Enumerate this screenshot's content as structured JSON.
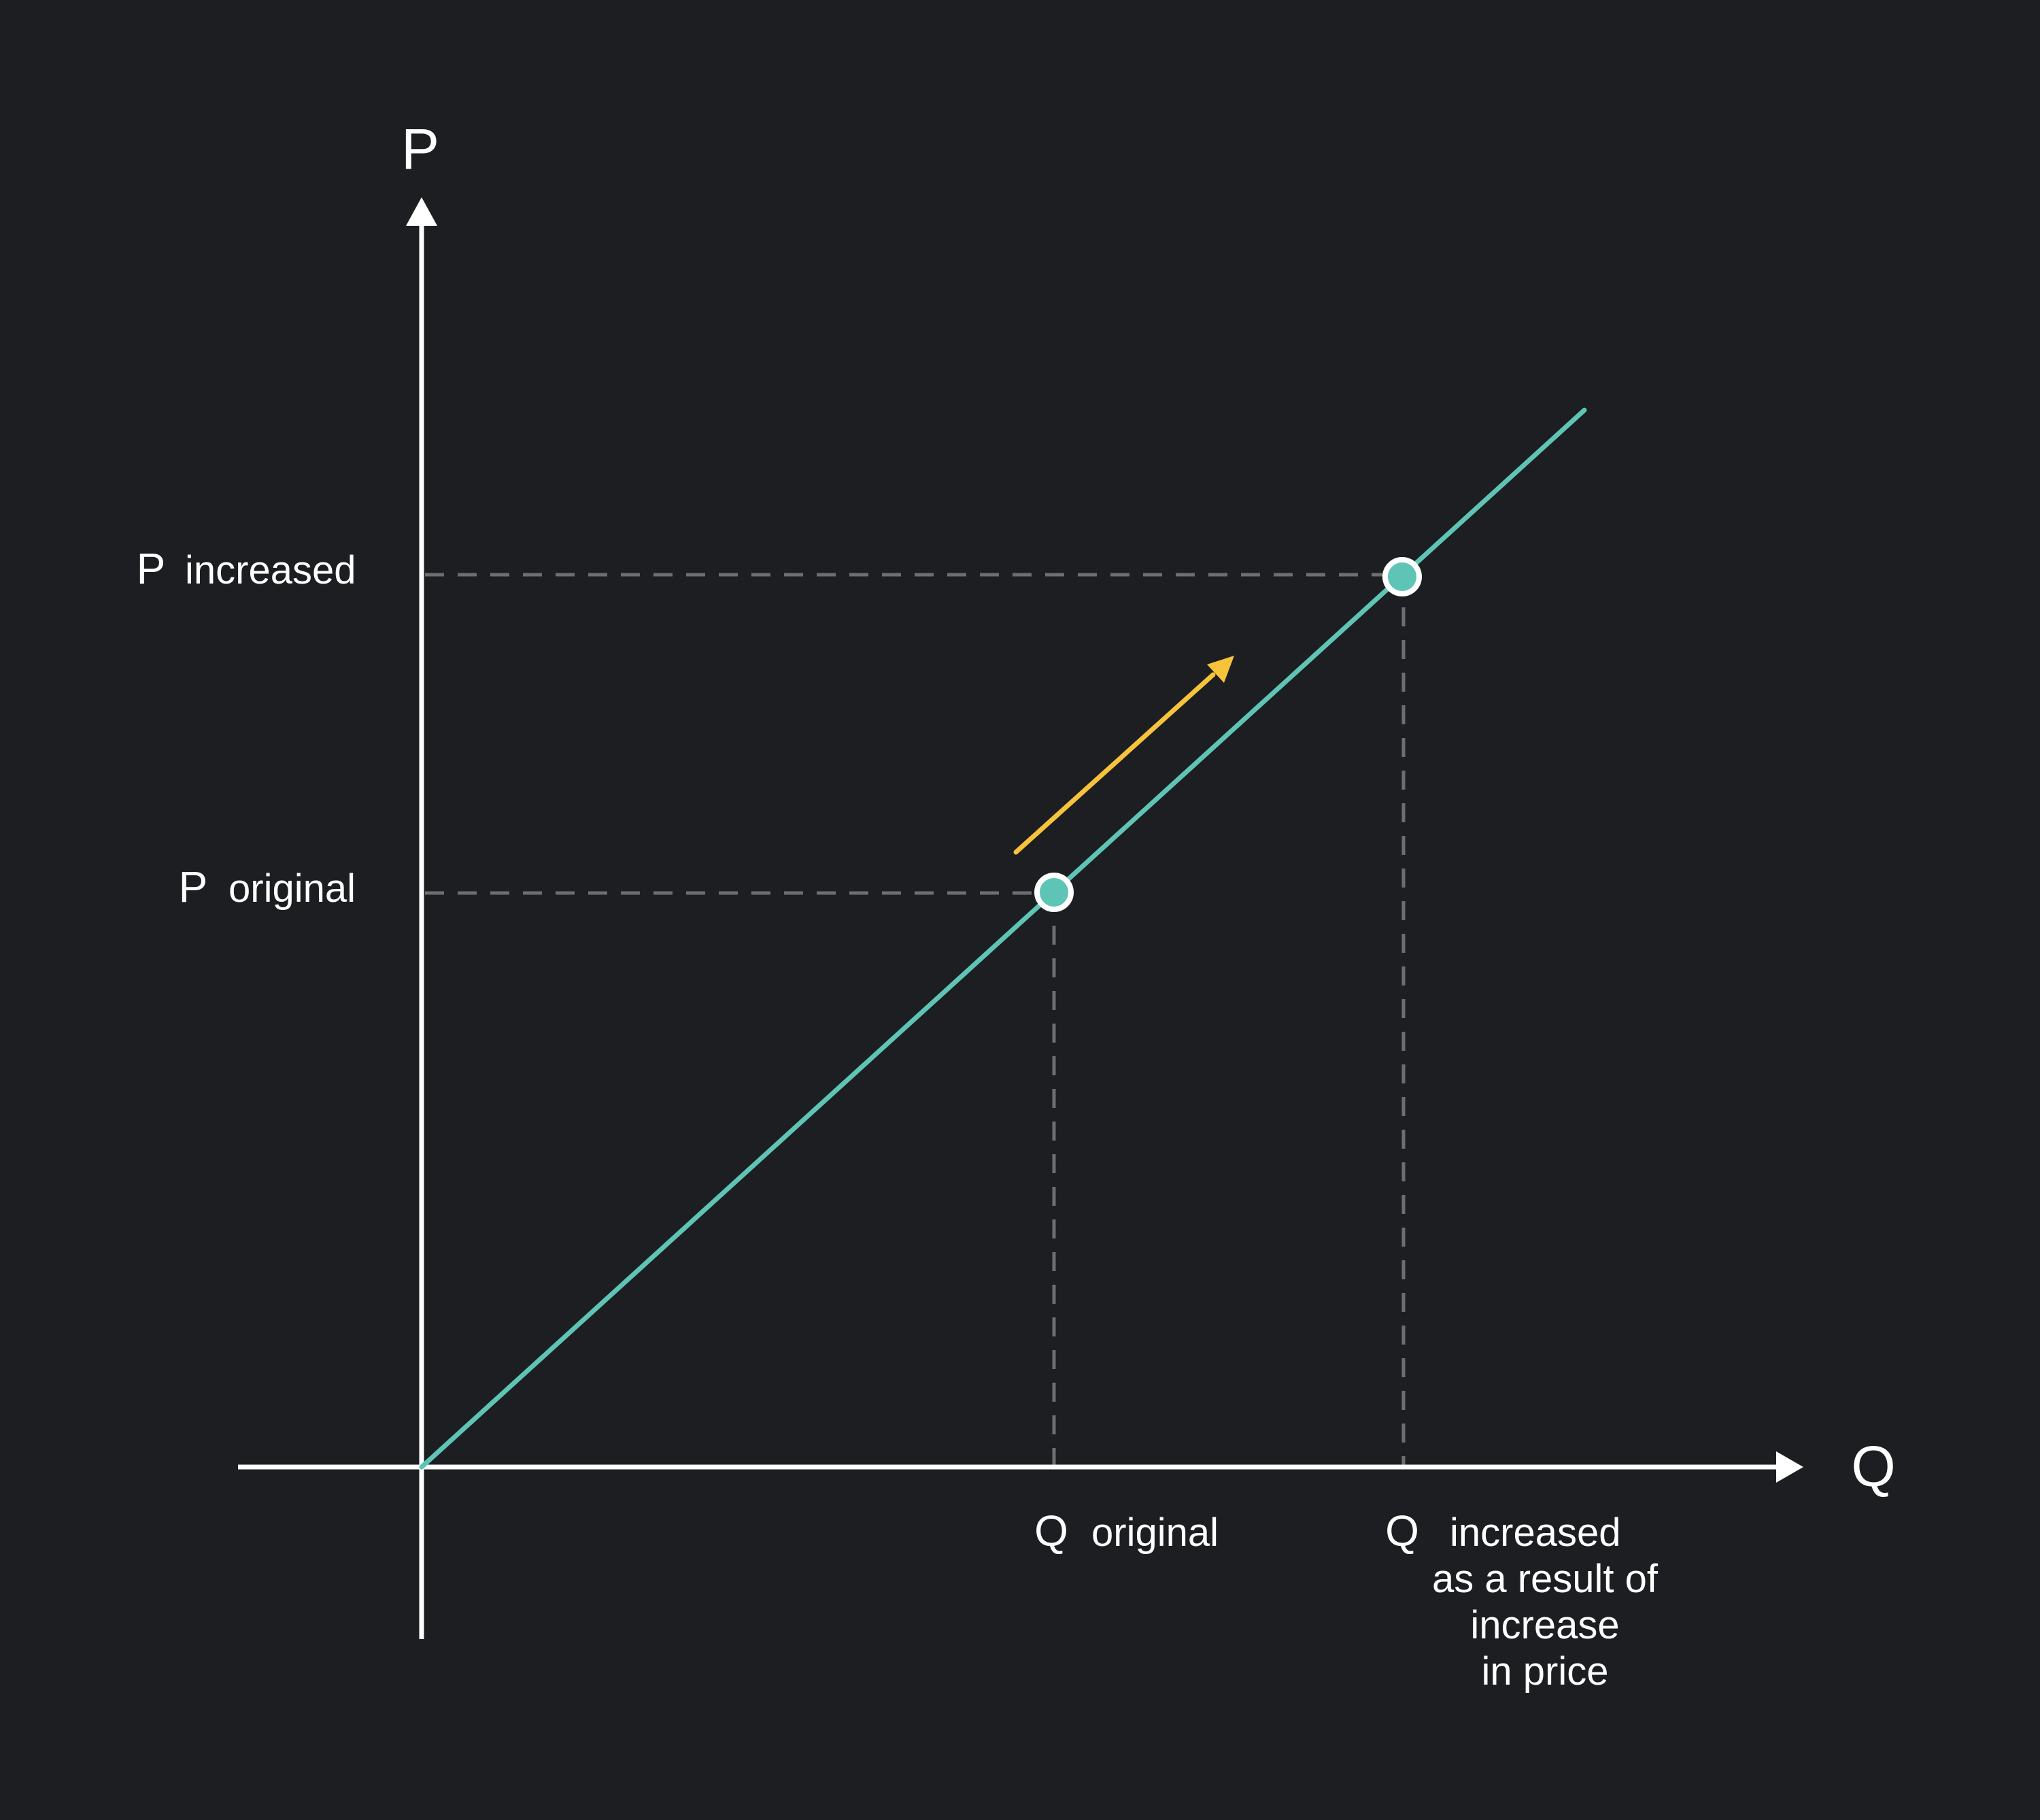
{
  "colors": {
    "background": "#1c1e21",
    "axis": "#ffffff",
    "supply_line": "#5ec4b6",
    "guide_dashes": "#6d6e70",
    "movement_arrow": "#f7c33c",
    "point_fill": "#5ec4b6",
    "point_outline": "#ffffff"
  },
  "axes": {
    "y_axis_label": "P",
    "x_axis_label": "Q"
  },
  "labels": {
    "p_increased_symbol": "P",
    "p_increased_text": "increased",
    "p_original_symbol": "P",
    "p_original_text": "original",
    "q_original_symbol": "Q",
    "q_original_text": "original",
    "q_increased_symbol": "Q",
    "q_increased_text": "increased",
    "q_increased_note_line1": "as a result of",
    "q_increased_note_line2": "increase",
    "q_increased_note_line3": "in price"
  },
  "shapes": {
    "supply_curve": "straight-line",
    "movement_arrow": "arrow-up-right",
    "points": [
      "original-point",
      "increased-point"
    ]
  }
}
